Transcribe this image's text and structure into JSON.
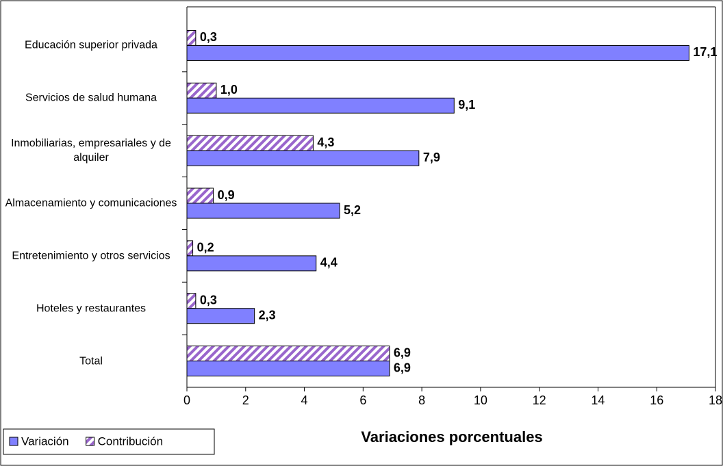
{
  "chart_data": {
    "type": "bar",
    "orientation": "horizontal",
    "xlabel": "Variaciones porcentuales",
    "categories": [
      "Educación superior privada",
      "Servicios de salud humana",
      "Inmobiliarias, empresariales y de alquiler",
      "Almacenamiento y comunicaciones",
      "Entretenimiento y otros servicios",
      "Hoteles y restaurantes",
      "Total"
    ],
    "series": [
      {
        "name": "Variación",
        "color": "#8080ff",
        "pattern": "solid",
        "values": [
          17.1,
          9.1,
          7.9,
          5.2,
          4.4,
          2.3,
          6.9
        ],
        "value_labels": [
          "17,1",
          "9,1",
          "7,9",
          "5,2",
          "4,4",
          "2,3",
          "6,9"
        ]
      },
      {
        "name": "Contribución",
        "color": "#9966cc",
        "pattern": "hatch",
        "values": [
          0.3,
          1.0,
          4.3,
          0.9,
          0.2,
          0.3,
          6.9
        ],
        "value_labels": [
          "0,3",
          "1,0",
          "4,3",
          "0,9",
          "0,2",
          "0,3",
          "6,9"
        ]
      }
    ],
    "xlim": [
      0,
      18
    ],
    "xticks": [
      0,
      2,
      4,
      6,
      8,
      10,
      12,
      14,
      16,
      18
    ],
    "grid": false,
    "legend": "bottom-left"
  }
}
